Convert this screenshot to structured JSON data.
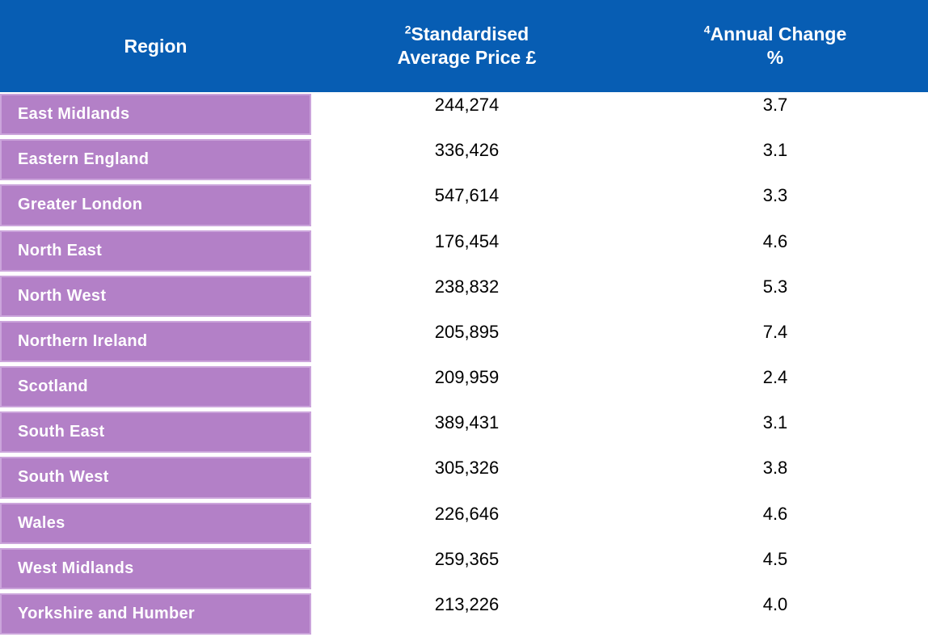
{
  "header": {
    "region": "Region",
    "price": {
      "sup": "2",
      "line1": "Standardised",
      "line2": "Average Price £"
    },
    "change": {
      "sup": "4",
      "line1": "Annual Change",
      "line2": "%"
    }
  },
  "rows": [
    {
      "region": "East Midlands",
      "price": "244,274",
      "change": "3.7"
    },
    {
      "region": "Eastern England",
      "price": "336,426",
      "change": "3.1"
    },
    {
      "region": "Greater London",
      "price": "547,614",
      "change": "3.3"
    },
    {
      "region": "North East",
      "price": "176,454",
      "change": "4.6"
    },
    {
      "region": "North West",
      "price": "238,832",
      "change": "5.3"
    },
    {
      "region": "Northern Ireland",
      "price": "205,895",
      "change": "7.4"
    },
    {
      "region": "Scotland",
      "price": "209,959",
      "change": "2.4"
    },
    {
      "region": "South East",
      "price": "389,431",
      "change": "3.1"
    },
    {
      "region": "South West",
      "price": "305,326",
      "change": "3.8"
    },
    {
      "region": "Wales",
      "price": "226,646",
      "change": "4.6"
    },
    {
      "region": "West Midlands",
      "price": "259,365",
      "change": "4.5"
    },
    {
      "region": "Yorkshire and Humber",
      "price": "213,226",
      "change": "4.0"
    }
  ],
  "colors": {
    "header_blue": "#075DB3",
    "row_purple": "#B380C7",
    "row_border": "#CBA4DB"
  },
  "chart_data": {
    "type": "table",
    "columns": [
      "Region",
      "2Standardised Average Price £",
      "4Annual Change %"
    ],
    "rows": [
      [
        "East Midlands",
        244274,
        3.7
      ],
      [
        "Eastern England",
        336426,
        3.1
      ],
      [
        "Greater London",
        547614,
        3.3
      ],
      [
        "North East",
        176454,
        4.6
      ],
      [
        "North West",
        238832,
        5.3
      ],
      [
        "Northern Ireland",
        205895,
        7.4
      ],
      [
        "Scotland",
        209959,
        2.4
      ],
      [
        "South East",
        389431,
        3.1
      ],
      [
        "South West",
        305326,
        3.8
      ],
      [
        "Wales",
        226646,
        4.6
      ],
      [
        "West Midlands",
        259365,
        4.5
      ],
      [
        "Yorkshire and Humber",
        213226,
        4.0
      ]
    ]
  }
}
